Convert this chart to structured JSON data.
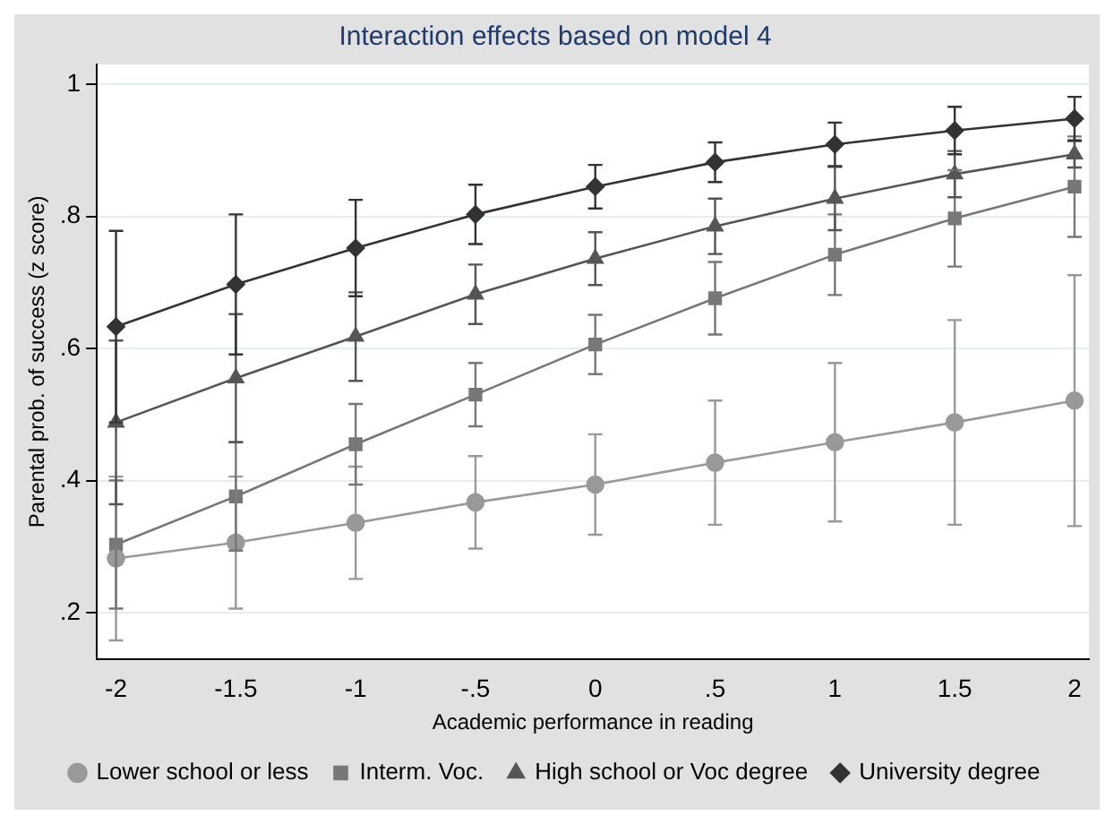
{
  "chart_data": {
    "type": "line",
    "title": "Interaction effects based on model 4",
    "xlabel": "Academic performance in reading",
    "ylabel": "Parental prob. of success (z score)",
    "x": [
      -2,
      -1.5,
      -1,
      -0.5,
      0,
      0.5,
      1,
      1.5,
      2
    ],
    "xlim": [
      -2.08,
      2.06
    ],
    "xticks": [
      {
        "value": -2,
        "label": "-2"
      },
      {
        "value": -1.5,
        "label": "-1.5"
      },
      {
        "value": -1,
        "label": "-1"
      },
      {
        "value": -0.5,
        "label": "-.5"
      },
      {
        "value": 0,
        "label": "0"
      },
      {
        "value": 0.5,
        "label": ".5"
      },
      {
        "value": 1,
        "label": "1"
      },
      {
        "value": 1.5,
        "label": "1.5"
      },
      {
        "value": 2,
        "label": "2"
      }
    ],
    "ylim": [
      0.13,
      1.03
    ],
    "yticks": [
      {
        "value": 0.2,
        "label": ".2"
      },
      {
        "value": 0.4,
        "label": ".4"
      },
      {
        "value": 0.6,
        "label": ".6"
      },
      {
        "value": 0.8,
        "label": ".8"
      },
      {
        "value": 1,
        "label": "1"
      }
    ],
    "grid": "y",
    "legend": "bottom",
    "series": [
      {
        "name": "Lower school or less",
        "color": "#999999",
        "marker": "circle",
        "values": [
          0.282,
          0.306,
          0.336,
          0.367,
          0.394,
          0.427,
          0.458,
          0.488,
          0.521
        ],
        "errors": [
          0.124,
          0.1,
          0.085,
          0.07,
          0.076,
          0.094,
          0.12,
          0.155,
          0.19
        ]
      },
      {
        "name": "Interm. Voc.",
        "color": "#777777",
        "marker": "square",
        "values": [
          0.303,
          0.376,
          0.455,
          0.53,
          0.606,
          0.676,
          0.742,
          0.797,
          0.845
        ],
        "errors": [
          0.097,
          0.082,
          0.061,
          0.048,
          0.045,
          0.055,
          0.061,
          0.073,
          0.076
        ]
      },
      {
        "name": "High school or Voc degree",
        "color": "#555555",
        "marker": "triangle",
        "values": [
          0.488,
          0.555,
          0.618,
          0.682,
          0.736,
          0.785,
          0.827,
          0.864,
          0.894
        ],
        "errors": [
          0.124,
          0.097,
          0.067,
          0.045,
          0.04,
          0.042,
          0.048,
          0.035,
          0.02
        ]
      },
      {
        "name": "University degree",
        "color": "#333333",
        "marker": "diamond",
        "values": [
          0.633,
          0.697,
          0.752,
          0.803,
          0.845,
          0.882,
          0.909,
          0.93,
          0.948
        ],
        "errors": [
          0.145,
          0.106,
          0.073,
          0.045,
          0.033,
          0.03,
          0.033,
          0.036,
          0.033
        ]
      }
    ]
  }
}
